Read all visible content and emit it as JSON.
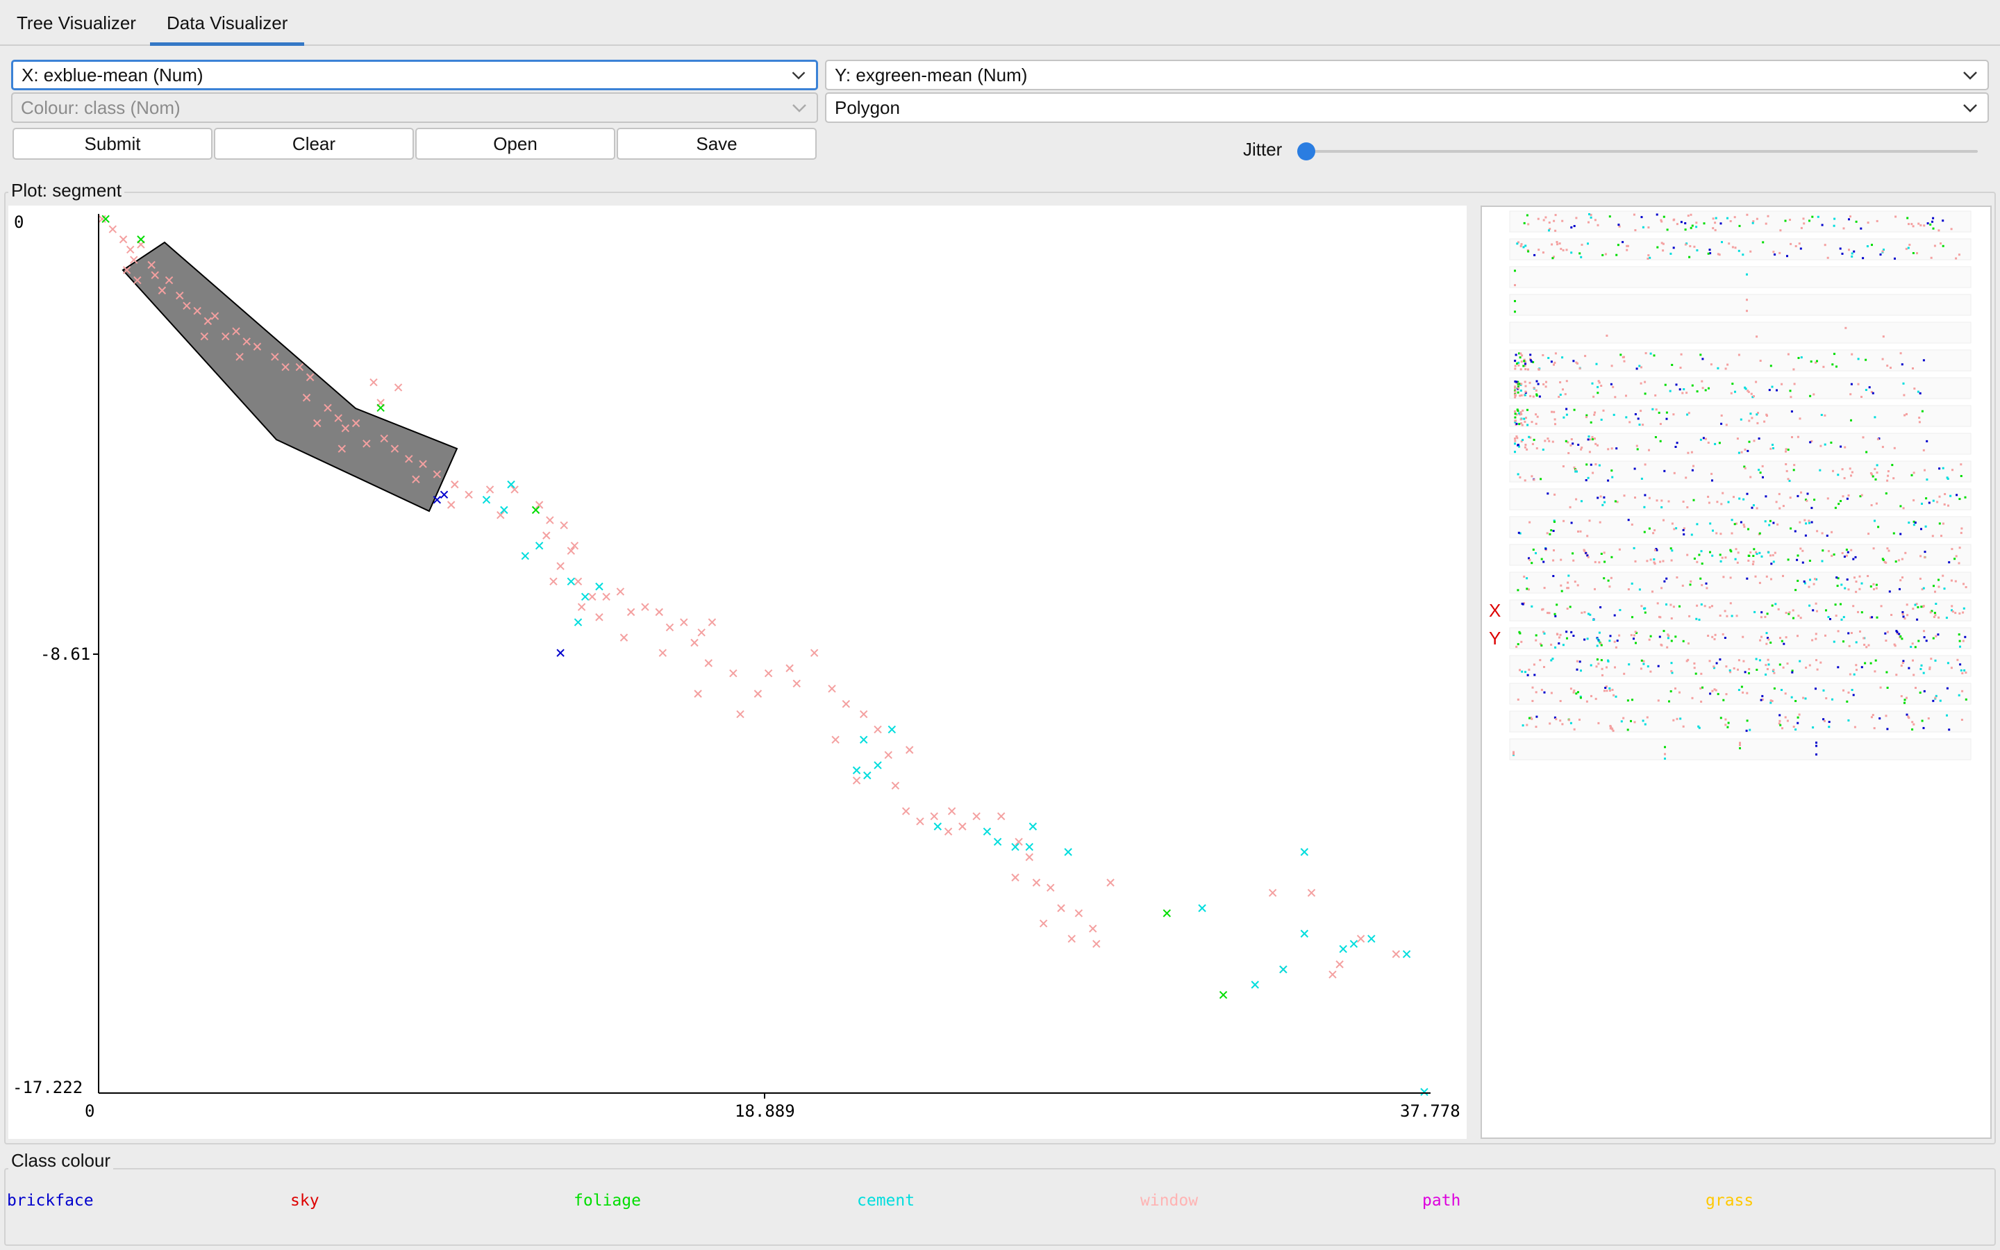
{
  "tabs": [
    {
      "label": "Tree Visualizer",
      "active": false
    },
    {
      "label": "Data Visualizer",
      "active": true
    }
  ],
  "controls": {
    "x_axis": "X: exblue-mean (Num)",
    "y_axis": "Y: exgreen-mean (Num)",
    "colour": "Colour: class (Nom)",
    "shape": "Polygon",
    "buttons": {
      "submit": "Submit",
      "clear": "Clear",
      "open": "Open",
      "save": "Save"
    },
    "jitter_label": "Jitter",
    "jitter_value": 0
  },
  "plot": {
    "title": "Plot: segment",
    "y_ticks": [
      "0",
      "-8.61",
      "-17.222"
    ],
    "x_ticks": [
      "0",
      "18.889",
      "37.778"
    ]
  },
  "matrix": {
    "x_marker": "X",
    "y_marker": "Y"
  },
  "legend": {
    "title": "Class colour",
    "items": [
      {
        "label": "brickface",
        "color": "#0000cc"
      },
      {
        "label": "sky",
        "color": "#dd0000"
      },
      {
        "label": "foliage",
        "color": "#00dd00"
      },
      {
        "label": "cement",
        "color": "#00dddd"
      },
      {
        "label": "window",
        "color": "#ffb3b3"
      },
      {
        "label": "path",
        "color": "#dd00dd"
      },
      {
        "label": "grass",
        "color": "#ffc800"
      }
    ]
  },
  "colors": {
    "accent": "#3478c6",
    "polygon_fill": "#808080"
  },
  "chart_data": {
    "type": "scatter",
    "title": "Plot: segment",
    "xlim": [
      0,
      37.778
    ],
    "ylim": [
      -17.222,
      0
    ],
    "series": [
      {
        "name": "window",
        "color": "#f4a0a0",
        "points": [
          [
            0.1,
            -0.1
          ],
          [
            0.4,
            -0.3
          ],
          [
            0.7,
            -0.5
          ],
          [
            0.9,
            -0.7
          ],
          [
            1.2,
            -0.6
          ],
          [
            1.0,
            -0.9
          ],
          [
            0.8,
            -1.1
          ],
          [
            1.5,
            -1.0
          ],
          [
            1.1,
            -1.3
          ],
          [
            1.6,
            -1.2
          ],
          [
            2.0,
            -1.3
          ],
          [
            1.8,
            -1.5
          ],
          [
            2.3,
            -1.6
          ],
          [
            2.5,
            -1.8
          ],
          [
            2.8,
            -1.9
          ],
          [
            3.1,
            -2.1
          ],
          [
            3.3,
            -2.0
          ],
          [
            3.0,
            -2.4
          ],
          [
            3.6,
            -2.4
          ],
          [
            3.9,
            -2.3
          ],
          [
            4.2,
            -2.5
          ],
          [
            4.0,
            -2.8
          ],
          [
            4.5,
            -2.6
          ],
          [
            5.0,
            -2.8
          ],
          [
            5.3,
            -3.0
          ],
          [
            5.7,
            -3.0
          ],
          [
            6.0,
            -3.2
          ],
          [
            5.9,
            -3.6
          ],
          [
            6.5,
            -3.8
          ],
          [
            6.2,
            -4.1
          ],
          [
            6.8,
            -4.0
          ],
          [
            7.0,
            -4.2
          ],
          [
            7.3,
            -4.1
          ],
          [
            6.9,
            -4.6
          ],
          [
            7.6,
            -4.5
          ],
          [
            8.1,
            -4.4
          ],
          [
            8.4,
            -4.6
          ],
          [
            8.8,
            -4.8
          ],
          [
            9.2,
            -4.9
          ],
          [
            9.0,
            -5.2
          ],
          [
            9.6,
            -5.1
          ],
          [
            10.1,
            -5.3
          ],
          [
            10.5,
            -5.5
          ],
          [
            10.0,
            -5.7
          ],
          [
            11.1,
            -5.4
          ],
          [
            11.4,
            -5.9
          ],
          [
            11.8,
            -5.4
          ],
          [
            12.5,
            -5.7
          ],
          [
            12.8,
            -6.0
          ],
          [
            13.2,
            -6.1
          ],
          [
            13.5,
            -6.5
          ],
          [
            13.1,
            -6.9
          ],
          [
            12.9,
            -7.2
          ],
          [
            13.6,
            -7.2
          ],
          [
            14.0,
            -7.5
          ],
          [
            14.4,
            -7.5
          ],
          [
            14.8,
            -7.4
          ],
          [
            15.1,
            -7.8
          ],
          [
            15.5,
            -7.7
          ],
          [
            15.9,
            -7.8
          ],
          [
            16.2,
            -8.1
          ],
          [
            16.6,
            -8.0
          ],
          [
            17.1,
            -8.2
          ],
          [
            16.9,
            -8.4
          ],
          [
            17.4,
            -8.0
          ],
          [
            13.7,
            -7.7
          ],
          [
            14.2,
            -7.9
          ],
          [
            14.9,
            -8.3
          ],
          [
            16.0,
            -8.6
          ],
          [
            17.3,
            -8.8
          ],
          [
            17.0,
            -9.4
          ],
          [
            18.0,
            -9.0
          ],
          [
            18.7,
            -9.4
          ],
          [
            19.0,
            -9.0
          ],
          [
            18.2,
            -9.8
          ],
          [
            19.6,
            -8.9
          ],
          [
            20.3,
            -8.6
          ],
          [
            19.8,
            -9.2
          ],
          [
            20.8,
            -9.3
          ],
          [
            21.2,
            -9.6
          ],
          [
            20.9,
            -10.3
          ],
          [
            21.7,
            -9.8
          ],
          [
            22.1,
            -10.1
          ],
          [
            22.4,
            -10.6
          ],
          [
            21.5,
            -11.1
          ],
          [
            22.6,
            -11.2
          ],
          [
            23.0,
            -10.5
          ],
          [
            22.9,
            -11.7
          ],
          [
            23.3,
            -11.9
          ],
          [
            23.7,
            -11.8
          ],
          [
            24.1,
            -12.1
          ],
          [
            24.5,
            -12.0
          ],
          [
            24.2,
            -11.7
          ],
          [
            24.9,
            -11.8
          ],
          [
            25.6,
            -11.8
          ],
          [
            26.1,
            -12.3
          ],
          [
            26.4,
            -12.6
          ],
          [
            26.0,
            -13.0
          ],
          [
            26.6,
            -13.1
          ],
          [
            27.0,
            -13.2
          ],
          [
            27.3,
            -13.6
          ],
          [
            26.8,
            -13.9
          ],
          [
            27.8,
            -13.7
          ],
          [
            28.2,
            -14.0
          ],
          [
            27.6,
            -14.2
          ],
          [
            28.3,
            -14.3
          ],
          [
            28.7,
            -13.1
          ],
          [
            33.3,
            -13.3
          ],
          [
            34.4,
            -13.3
          ],
          [
            35.8,
            -14.2
          ],
          [
            33.6,
            -14.8
          ],
          [
            35.2,
            -14.7
          ],
          [
            36.8,
            -14.5
          ],
          [
            35.0,
            -14.9
          ],
          [
            8.5,
            -3.4
          ],
          [
            8.0,
            -3.7
          ],
          [
            7.8,
            -3.3
          ],
          [
            12.7,
            -6.3
          ],
          [
            13.4,
            -6.6
          ]
        ]
      },
      {
        "name": "cement",
        "color": "#00dddd",
        "points": [
          [
            11.7,
            -5.3
          ],
          [
            11.0,
            -5.6
          ],
          [
            11.5,
            -5.8
          ],
          [
            12.1,
            -6.7
          ],
          [
            12.5,
            -6.5
          ],
          [
            13.4,
            -7.2
          ],
          [
            14.2,
            -7.3
          ],
          [
            13.8,
            -7.5
          ],
          [
            13.6,
            -8.0
          ],
          [
            21.7,
            -10.3
          ],
          [
            21.5,
            -10.9
          ],
          [
            22.1,
            -10.8
          ],
          [
            21.8,
            -11.0
          ],
          [
            22.5,
            -10.1
          ],
          [
            23.8,
            -12.0
          ],
          [
            25.2,
            -12.1
          ],
          [
            25.5,
            -12.3
          ],
          [
            26.0,
            -12.4
          ],
          [
            26.5,
            -12.0
          ],
          [
            26.4,
            -12.4
          ],
          [
            27.5,
            -12.5
          ],
          [
            31.3,
            -13.6
          ],
          [
            34.2,
            -14.1
          ],
          [
            35.6,
            -14.3
          ],
          [
            37.1,
            -14.5
          ],
          [
            32.8,
            -15.1
          ],
          [
            33.6,
            -14.8
          ],
          [
            35.3,
            -14.4
          ],
          [
            36.1,
            -14.2
          ],
          [
            37.6,
            -17.2
          ],
          [
            34.2,
            -12.5
          ]
        ]
      },
      {
        "name": "foliage",
        "color": "#00dd00",
        "points": [
          [
            0.2,
            -0.1
          ],
          [
            1.2,
            -0.5
          ],
          [
            8.0,
            -3.8
          ],
          [
            12.4,
            -5.8
          ],
          [
            30.3,
            -13.7
          ],
          [
            31.9,
            -15.3
          ]
        ]
      },
      {
        "name": "brickface",
        "color": "#0000cc",
        "points": [
          [
            9.8,
            -5.5
          ],
          [
            9.6,
            -5.6
          ],
          [
            13.1,
            -8.6
          ]
        ]
      }
    ]
  }
}
